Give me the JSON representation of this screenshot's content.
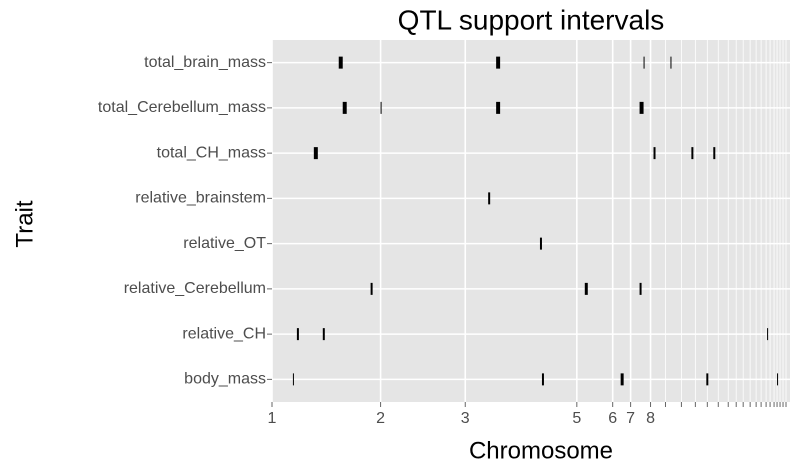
{
  "chart_data": {
    "type": "interval",
    "title": "QTL support intervals",
    "x_label": "Chromosome",
    "y_label": "Trait",
    "categories": [
      "total_brain_mass",
      "total_Cerebellum_mass",
      "total_CH_mass",
      "relative_brainstem",
      "relative_OT",
      "relative_Cerebellum",
      "relative_CH",
      "body_mass"
    ],
    "intervals": [
      [
        [
          67,
          71
        ],
        [
          225,
          229
        ],
        [
          373,
          374
        ],
        [
          400,
          401
        ]
      ],
      [
        [
          71,
          75
        ],
        [
          109,
          110
        ],
        [
          225,
          229
        ],
        [
          369,
          373
        ]
      ],
      [
        [
          42,
          46
        ],
        [
          383,
          385
        ],
        [
          421,
          423
        ],
        [
          443,
          445
        ]
      ],
      [
        [
          217,
          219
        ]
      ],
      [
        [
          269,
          271
        ]
      ],
      [
        [
          99,
          101
        ],
        [
          314,
          317
        ],
        [
          369,
          371
        ]
      ],
      [
        [
          25,
          27
        ],
        [
          51,
          53
        ],
        [
          497,
          498
        ]
      ],
      [
        [
          21,
          22
        ],
        [
          271,
          273
        ],
        [
          350,
          353
        ],
        [
          436,
          438
        ],
        [
          507,
          508
        ]
      ]
    ],
    "color": "#000000",
    "xlim": [
      0,
      520
    ],
    "xticks": [
      {
        "value": 0,
        "label": "1"
      },
      {
        "value": 109,
        "label": "2"
      },
      {
        "value": 194,
        "label": "3"
      },
      {
        "value": 306,
        "label": "5"
      },
      {
        "value": 342,
        "label": "6"
      },
      {
        "value": 360,
        "label": "7"
      },
      {
        "value": 380,
        "label": "8"
      },
      {
        "value": 395,
        "label": null
      },
      {
        "value": 411,
        "label": null
      },
      {
        "value": 425,
        "label": null
      },
      {
        "value": 437,
        "label": null
      },
      {
        "value": 448,
        "label": null
      },
      {
        "value": 458,
        "label": null
      },
      {
        "value": 466,
        "label": null
      },
      {
        "value": 473,
        "label": null
      },
      {
        "value": 480,
        "label": null
      },
      {
        "value": 486,
        "label": null
      },
      {
        "value": 491,
        "label": null
      },
      {
        "value": 496,
        "label": null
      },
      {
        "value": 500,
        "label": null
      },
      {
        "value": 504,
        "label": null
      },
      {
        "value": 507,
        "label": null
      },
      {
        "value": 510,
        "label": null
      },
      {
        "value": 513,
        "label": null
      },
      {
        "value": 516,
        "label": null
      }
    ],
    "grid": true
  }
}
